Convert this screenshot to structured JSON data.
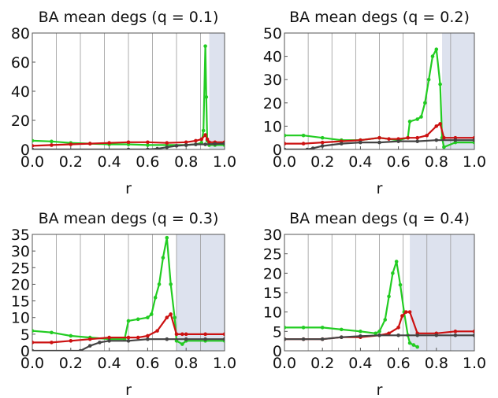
{
  "chart_data": [
    {
      "type": "line",
      "title": "BA mean  degs (q = 0.1)",
      "xlabel": "r",
      "ylabel": "",
      "xlim": [
        0.0,
        1.0
      ],
      "ylim": [
        0,
        80
      ],
      "xticks": [
        "0.0",
        "0.2",
        "0.4",
        "0.6",
        "0.8",
        "1.0"
      ],
      "yticks": [
        "0",
        "20",
        "40",
        "60",
        "80"
      ],
      "shaded_region": [
        0.92,
        1.0
      ],
      "series": [
        {
          "color": "#22cc22",
          "x": [
            0.0,
            0.1,
            0.2,
            0.3,
            0.4,
            0.5,
            0.6,
            0.7,
            0.8,
            0.85,
            0.88,
            0.89,
            0.9,
            0.905,
            0.91,
            0.92,
            0.95,
            1.0
          ],
          "y": [
            6,
            5.5,
            4.5,
            4,
            3.5,
            3.5,
            3,
            3,
            3,
            3.5,
            4.5,
            13,
            71,
            36,
            6,
            3,
            3,
            3
          ]
        },
        {
          "color": "#cc1111",
          "x": [
            0.0,
            0.1,
            0.2,
            0.3,
            0.4,
            0.5,
            0.6,
            0.7,
            0.8,
            0.85,
            0.88,
            0.9,
            0.91,
            0.92,
            0.95,
            1.0
          ],
          "y": [
            2.5,
            3,
            3.5,
            4,
            4.5,
            5,
            5,
            4.5,
            5,
            6,
            7,
            10,
            7,
            5,
            5,
            5
          ]
        },
        {
          "color": "#444444",
          "x": [
            0.0,
            0.5,
            0.6,
            0.65,
            0.7,
            0.75,
            0.8,
            0.85,
            0.9,
            0.95,
            1.0
          ],
          "y": [
            0,
            0,
            0,
            0.5,
            1.5,
            2.5,
            3,
            3.5,
            3.5,
            3.8,
            4
          ]
        }
      ]
    },
    {
      "type": "line",
      "title": "BA mean  degs (q = 0.2)",
      "xlabel": "r",
      "ylabel": "",
      "xlim": [
        0.0,
        1.0
      ],
      "ylim": [
        0,
        50
      ],
      "xticks": [
        "0.0",
        "0.2",
        "0.4",
        "0.6",
        "0.8",
        "1.0"
      ],
      "yticks": [
        "0",
        "10",
        "20",
        "30",
        "40",
        "50"
      ],
      "shaded_region": [
        0.83,
        1.0
      ],
      "series": [
        {
          "color": "#22cc22",
          "x": [
            0.0,
            0.1,
            0.2,
            0.3,
            0.4,
            0.5,
            0.6,
            0.65,
            0.66,
            0.7,
            0.72,
            0.74,
            0.76,
            0.78,
            0.8,
            0.82,
            0.83,
            0.84,
            0.9,
            1.0
          ],
          "y": [
            6,
            6,
            5,
            4,
            4,
            5,
            4,
            5,
            12,
            13,
            14,
            20,
            30,
            40,
            43,
            28,
            5,
            1,
            3,
            3
          ]
        },
        {
          "color": "#cc1111",
          "x": [
            0.0,
            0.1,
            0.2,
            0.3,
            0.4,
            0.5,
            0.55,
            0.6,
            0.65,
            0.7,
            0.75,
            0.8,
            0.82,
            0.84,
            0.9,
            1.0
          ],
          "y": [
            2.5,
            2.5,
            3,
            3.5,
            4,
            5,
            4.5,
            4.5,
            5,
            5,
            6,
            10,
            11,
            5,
            5,
            5
          ]
        },
        {
          "color": "#444444",
          "x": [
            0.0,
            0.12,
            0.15,
            0.2,
            0.3,
            0.4,
            0.5,
            0.6,
            0.7,
            0.8,
            0.9,
            1.0
          ],
          "y": [
            0,
            0,
            0.5,
            1.5,
            2.5,
            3,
            3,
            3.5,
            3.5,
            4,
            4,
            4
          ]
        }
      ]
    },
    {
      "type": "line",
      "title": "BA mean  degs (q = 0.3)",
      "xlabel": "r",
      "ylabel": "",
      "xlim": [
        0.0,
        1.0
      ],
      "ylim": [
        0,
        35
      ],
      "xticks": [
        "0.0",
        "0.2",
        "0.4",
        "0.6",
        "0.8",
        "1.0"
      ],
      "yticks": [
        "0",
        "5",
        "10",
        "15",
        "20",
        "25",
        "30",
        "35"
      ],
      "shaded_region": [
        0.75,
        1.0
      ],
      "series": [
        {
          "color": "#22cc22",
          "x": [
            0.0,
            0.1,
            0.2,
            0.3,
            0.4,
            0.48,
            0.5,
            0.55,
            0.6,
            0.62,
            0.64,
            0.66,
            0.68,
            0.7,
            0.72,
            0.74,
            0.75,
            0.78,
            0.8,
            0.9,
            1.0
          ],
          "y": [
            6,
            5.5,
            4.5,
            4,
            3.5,
            3.5,
            9,
            9.5,
            10,
            11,
            16,
            20,
            28,
            34,
            20,
            10,
            3,
            2,
            3,
            3,
            3
          ]
        },
        {
          "color": "#cc1111",
          "x": [
            0.0,
            0.1,
            0.2,
            0.3,
            0.4,
            0.5,
            0.55,
            0.6,
            0.65,
            0.7,
            0.72,
            0.75,
            0.78,
            0.8,
            0.9,
            1.0
          ],
          "y": [
            2.5,
            2.5,
            3,
            3.5,
            4,
            4,
            4,
            4.5,
            6,
            10,
            11,
            5,
            5,
            5,
            5,
            5
          ]
        },
        {
          "color": "#444444",
          "x": [
            0.0,
            0.25,
            0.3,
            0.35,
            0.4,
            0.5,
            0.6,
            0.7,
            0.8,
            0.9,
            1.0
          ],
          "y": [
            0,
            0,
            1.5,
            2.5,
            3,
            3,
            3.5,
            3.5,
            3.5,
            3.5,
            3.5
          ]
        }
      ]
    },
    {
      "type": "line",
      "title": "BA mean  degs (q = 0.4)",
      "xlabel": "r",
      "ylabel": "",
      "xlim": [
        0.0,
        1.0
      ],
      "ylim": [
        0,
        30
      ],
      "xticks": [
        "0.0",
        "0.2",
        "0.4",
        "0.6",
        "0.8",
        "1.0"
      ],
      "yticks": [
        "0",
        "5",
        "10",
        "15",
        "20",
        "25",
        "30"
      ],
      "shaded_region": [
        0.66,
        1.0
      ],
      "series": [
        {
          "color": "#22cc22",
          "x": [
            0.0,
            0.1,
            0.2,
            0.3,
            0.4,
            0.48,
            0.5,
            0.53,
            0.55,
            0.57,
            0.59,
            0.61,
            0.63,
            0.65,
            0.66,
            0.68,
            0.7
          ],
          "y": [
            6,
            6,
            6,
            5.5,
            5,
            4.5,
            5,
            8,
            14,
            20,
            23,
            17,
            10,
            4,
            2,
            1.5,
            1
          ]
        },
        {
          "color": "#cc1111",
          "x": [
            0.0,
            0.1,
            0.2,
            0.3,
            0.4,
            0.5,
            0.55,
            0.6,
            0.62,
            0.64,
            0.66,
            0.7,
            0.8,
            0.9,
            1.0
          ],
          "y": [
            3,
            3,
            3,
            3.5,
            3.5,
            4,
            4.5,
            6,
            9,
            10,
            10,
            4.5,
            4.5,
            5,
            5
          ]
        },
        {
          "color": "#444444",
          "x": [
            0.0,
            0.1,
            0.2,
            0.3,
            0.4,
            0.5,
            0.6,
            0.7,
            0.8,
            0.9,
            1.0
          ],
          "y": [
            3,
            3,
            3,
            3.5,
            3.8,
            4,
            4,
            4,
            4,
            4,
            4
          ]
        }
      ]
    }
  ]
}
